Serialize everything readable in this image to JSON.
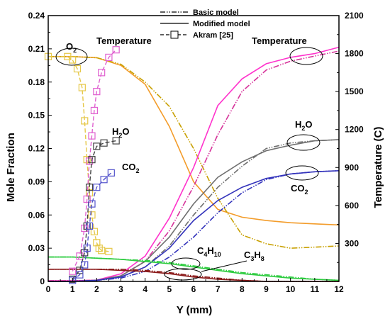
{
  "chart_data": {
    "type": "line",
    "xlabel": "Y (mm)",
    "ylabel": "Mole Fraction",
    "y2label": "Temperature (C)",
    "xlim": [
      0,
      12
    ],
    "ylim": [
      0,
      0.24
    ],
    "y2lim": [
      0,
      2100
    ],
    "xticks": [
      "0",
      "1",
      "2",
      "3",
      "4",
      "5",
      "6",
      "7",
      "8",
      "9",
      "10",
      "11",
      "12"
    ],
    "yticks": [
      "0",
      "0.03",
      "0.06",
      "0.09",
      "0.12",
      "0.15",
      "0.18",
      "0.21",
      "0.24"
    ],
    "y2ticks": [
      "300",
      "600",
      "900",
      "1200",
      "1500",
      "1800",
      "2100"
    ],
    "legend": {
      "position": "top-center",
      "entries": [
        {
          "label": "Basic model",
          "style": "dash-dot-dot"
        },
        {
          "label": "Modified model",
          "style": "solid"
        },
        {
          "label": "Akram [25]",
          "style": "dash-square"
        }
      ]
    },
    "annotations": {
      "o2": {
        "base": "O",
        "sub": "2"
      },
      "temp_left": "Temperature",
      "temp_right": "Temperature",
      "h2o_left": {
        "a": "H",
        "sub": "2",
        "b": "O"
      },
      "co2_left": {
        "a": "CO",
        "sub": "2"
      },
      "h2o_right": {
        "a": "H",
        "sub": "2",
        "b": "O"
      },
      "co2_right": {
        "a": "CO",
        "sub": "2"
      },
      "c4h10": {
        "a": "C",
        "s1": "4",
        "b": "H",
        "s2": "10"
      },
      "c3h8": {
        "a": "C",
        "s1": "3",
        "b": "H",
        "s2": "8"
      }
    },
    "colors": {
      "o2": "#f39c2a",
      "o2_basic": "#c8a000",
      "temperature": "#ff33cc",
      "temperature_basic": "#d6339a",
      "h2o": "#707070",
      "co2": "#3333bb",
      "c4h10": "#2ecc40",
      "c3h8": "#8b1a1a",
      "akram_o2": "#e6c84a",
      "akram_temp": "#e061d0",
      "akram_h2o": "#444444",
      "akram_co2": "#5555cc"
    },
    "series": [
      {
        "key": "o2_mod",
        "axis": "left",
        "style": "solid",
        "color_key": "o2",
        "x": [
          0,
          1,
          2,
          3,
          4,
          5,
          6,
          7,
          8,
          9,
          10,
          11,
          12
        ],
        "y": [
          0.203,
          0.203,
          0.202,
          0.195,
          0.178,
          0.14,
          0.09,
          0.065,
          0.058,
          0.055,
          0.053,
          0.052,
          0.051
        ]
      },
      {
        "key": "o2_basic",
        "axis": "left",
        "style": "dashdot",
        "color_key": "o2_basic",
        "x": [
          0,
          1,
          2,
          3,
          4,
          5,
          6,
          7,
          8,
          9,
          10,
          11,
          12
        ],
        "y": [
          0.203,
          0.203,
          0.202,
          0.196,
          0.18,
          0.158,
          0.12,
          0.075,
          0.042,
          0.034,
          0.03,
          0.031,
          0.032
        ]
      },
      {
        "key": "temp_mod",
        "axis": "right",
        "style": "solid",
        "color_key": "temperature",
        "x": [
          0,
          1,
          2,
          3,
          4,
          5,
          6,
          7,
          8,
          9,
          10,
          11,
          12
        ],
        "y": [
          5,
          5,
          10,
          60,
          200,
          500,
          900,
          1390,
          1600,
          1720,
          1770,
          1800,
          1850
        ]
      },
      {
        "key": "temp_basic",
        "axis": "right",
        "style": "dashdot",
        "color_key": "temperature_basic",
        "x": [
          0,
          1,
          2,
          3,
          4,
          5,
          6,
          7,
          8,
          9,
          10,
          11,
          12
        ],
        "y": [
          5,
          5,
          10,
          45,
          160,
          400,
          750,
          1160,
          1500,
          1670,
          1740,
          1780,
          1820
        ]
      },
      {
        "key": "h2o_mod",
        "axis": "left",
        "style": "solid",
        "color_key": "h2o",
        "x": [
          0,
          1,
          2,
          3,
          4,
          5,
          6,
          7,
          8,
          9,
          10,
          11,
          12
        ],
        "y": [
          0,
          0,
          0.001,
          0.005,
          0.018,
          0.04,
          0.07,
          0.094,
          0.108,
          0.118,
          0.123,
          0.127,
          0.128
        ]
      },
      {
        "key": "h2o_basic",
        "axis": "left",
        "style": "dashdot",
        "color_key": "h2o",
        "x": [
          0,
          1,
          2,
          3,
          4,
          5,
          6,
          7,
          8,
          9,
          10,
          11,
          12
        ],
        "y": [
          0,
          0,
          0.001,
          0.004,
          0.013,
          0.032,
          0.06,
          0.085,
          0.104,
          0.12,
          0.125,
          0.127,
          0.128
        ]
      },
      {
        "key": "co2_mod",
        "axis": "left",
        "style": "solid",
        "color_key": "co2",
        "x": [
          0,
          1,
          2,
          3,
          4,
          5,
          6,
          7,
          8,
          9,
          10,
          11,
          12
        ],
        "y": [
          0,
          0,
          0.001,
          0.004,
          0.013,
          0.03,
          0.055,
          0.073,
          0.085,
          0.093,
          0.097,
          0.099,
          0.1
        ]
      },
      {
        "key": "co2_basic",
        "axis": "left",
        "style": "dashdot",
        "color_key": "co2",
        "x": [
          0,
          1,
          2,
          3,
          4,
          5,
          6,
          7,
          8,
          9,
          10,
          11,
          12
        ],
        "y": [
          0,
          0,
          0.001,
          0.003,
          0.009,
          0.022,
          0.04,
          0.062,
          0.08,
          0.092,
          0.097,
          0.099,
          0.1
        ]
      },
      {
        "key": "c4h10_mod",
        "axis": "left",
        "style": "solid",
        "color_key": "c4h10",
        "x": [
          0,
          1,
          2,
          3,
          4,
          5,
          6,
          7,
          8,
          9,
          10,
          11,
          12
        ],
        "y": [
          0.022,
          0.022,
          0.021,
          0.02,
          0.018,
          0.016,
          0.013,
          0.01,
          0.007,
          0.005,
          0.003,
          0.002,
          0.001
        ]
      },
      {
        "key": "c4h10_basic",
        "axis": "left",
        "style": "dashdot",
        "color_key": "c4h10",
        "x": [
          0,
          1,
          2,
          3,
          4,
          5,
          6,
          7,
          8,
          9,
          10,
          11,
          12
        ],
        "y": [
          0.022,
          0.022,
          0.021,
          0.02,
          0.019,
          0.017,
          0.014,
          0.011,
          0.008,
          0.006,
          0.004,
          0.002,
          0.001
        ]
      },
      {
        "key": "c3h8_mod",
        "axis": "left",
        "style": "solid",
        "color_key": "c3h8",
        "x": [
          0,
          1,
          2,
          3,
          4,
          5,
          6,
          7,
          8,
          9,
          10,
          11,
          12
        ],
        "y": [
          0.011,
          0.011,
          0.011,
          0.01,
          0.009,
          0.007,
          0.004,
          0.002,
          0.001,
          0,
          0,
          0,
          0
        ]
      },
      {
        "key": "c3h8_basic",
        "axis": "left",
        "style": "dashdot",
        "color_key": "c3h8",
        "x": [
          0,
          1,
          2,
          3,
          4,
          5,
          6,
          7,
          8,
          9,
          10,
          11,
          12
        ],
        "y": [
          0.011,
          0.011,
          0.011,
          0.011,
          0.01,
          0.008,
          0.005,
          0.003,
          0.001,
          0,
          0,
          0,
          0
        ]
      },
      {
        "key": "akram_o2",
        "axis": "left",
        "style": "marker",
        "color_key": "akram_o2",
        "x": [
          0,
          0.8,
          1.0,
          1.2,
          1.4,
          1.5,
          1.6,
          1.7,
          1.8,
          1.9,
          2.0,
          2.1,
          2.2,
          2.5
        ],
        "y": [
          0.203,
          0.203,
          0.2,
          0.192,
          0.175,
          0.145,
          0.11,
          0.08,
          0.06,
          0.045,
          0.035,
          0.03,
          0.028,
          0.027
        ]
      },
      {
        "key": "akram_temp",
        "axis": "right",
        "style": "marker",
        "color_key": "akram_temp",
        "x": [
          1.0,
          1.3,
          1.5,
          1.6,
          1.7,
          1.8,
          1.9,
          2.0,
          2.2,
          2.5,
          2.8
        ],
        "y": [
          80,
          200,
          420,
          650,
          950,
          1150,
          1350,
          1500,
          1650,
          1770,
          1830
        ]
      },
      {
        "key": "akram_h2o",
        "axis": "left",
        "style": "marker",
        "color_key": "akram_h2o",
        "x": [
          1.0,
          1.3,
          1.5,
          1.6,
          1.7,
          1.8,
          2.0,
          2.3,
          2.8
        ],
        "y": [
          0.002,
          0.01,
          0.026,
          0.05,
          0.085,
          0.11,
          0.122,
          0.125,
          0.127
        ]
      },
      {
        "key": "akram_co2",
        "axis": "left",
        "style": "marker",
        "color_key": "akram_co2",
        "x": [
          1.0,
          1.3,
          1.5,
          1.6,
          1.7,
          1.8,
          2.0,
          2.3,
          2.6
        ],
        "y": [
          0.001,
          0.006,
          0.015,
          0.03,
          0.05,
          0.07,
          0.085,
          0.092,
          0.098
        ]
      }
    ]
  }
}
